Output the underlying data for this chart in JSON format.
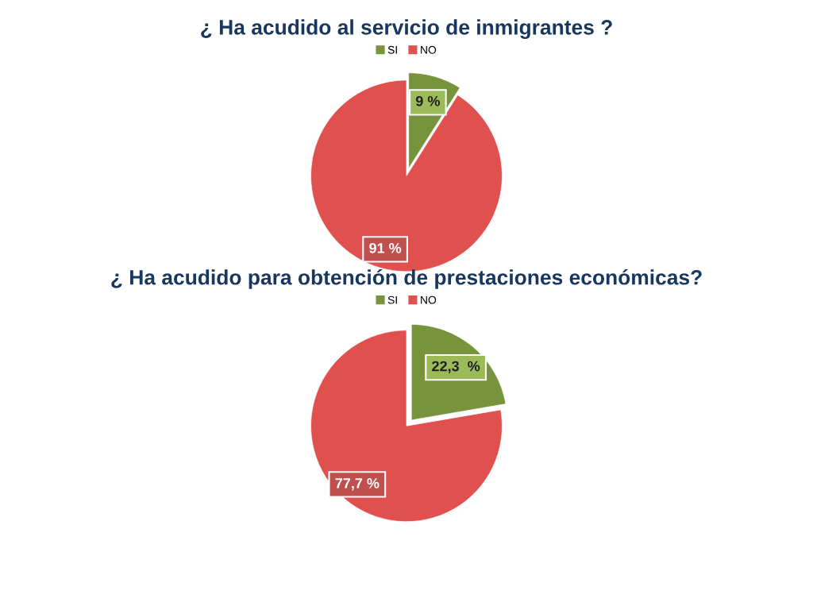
{
  "chart_data": [
    {
      "type": "pie",
      "title": "¿ Ha acudido al servicio de inmigrantes ?",
      "categories": [
        "SI",
        "NO"
      ],
      "values": [
        9,
        91
      ],
      "colors": [
        "#77933c",
        "#e0504f"
      ],
      "value_labels": [
        "9 %",
        "91 %"
      ],
      "legend": "top"
    },
    {
      "type": "pie",
      "title": "¿ Ha acudido para obtención de prestaciones económicas?",
      "categories": [
        "SI",
        "NO"
      ],
      "values": [
        22.3,
        77.7
      ],
      "colors": [
        "#77933c",
        "#e0504f"
      ],
      "value_labels": [
        "22,3  %",
        "77,7 %"
      ],
      "legend": "top"
    }
  ]
}
